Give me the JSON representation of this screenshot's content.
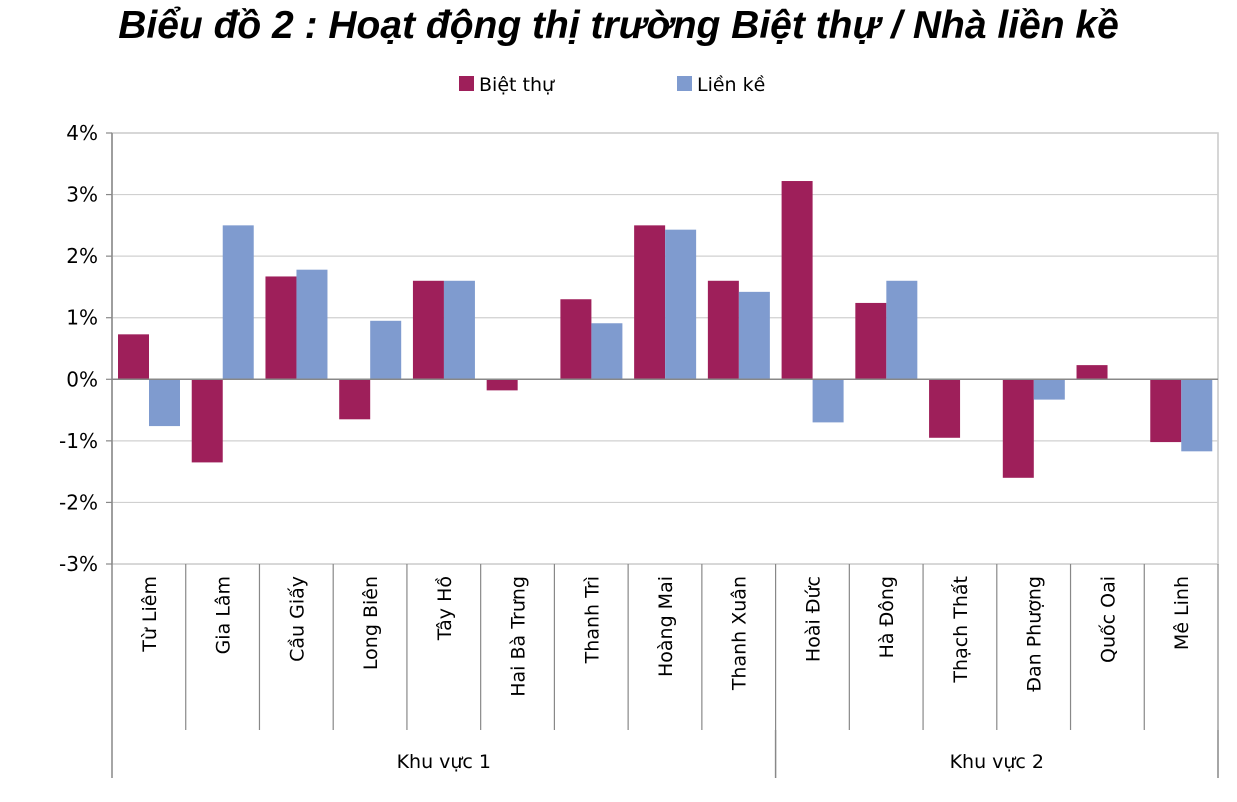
{
  "chart_data": {
    "type": "bar",
    "title": "Biểu đồ 2 : Hoạt động thị trường Biệt thự / Nhà liền kề",
    "categories": [
      "Từ Liêm",
      "Gia Lâm",
      "Cầu Giấy",
      "Long Biên",
      "Tây Hồ",
      "Hai Bà Trưng",
      "Thanh Trì",
      "Hoàng Mai",
      "Thanh Xuân",
      "Hoài Đức",
      "Hà Đông",
      "Thạch Thất",
      "Đan Phượng",
      "Quốc Oai",
      "Mê Linh"
    ],
    "groups": [
      {
        "label": "Khu vực 1",
        "categories": [
          "Từ Liêm",
          "Gia Lâm",
          "Cầu Giấy",
          "Long Biên",
          "Tây Hồ",
          "Hai Bà Trưng",
          "Thanh Trì",
          "Hoàng Mai",
          "Thanh Xuân"
        ]
      },
      {
        "label": "Khu vực 2",
        "categories": [
          "Hoài Đức",
          "Hà Đông",
          "Thạch Thất",
          "Đan Phượng",
          "Quốc Oai",
          "Mê Linh"
        ]
      }
    ],
    "series": [
      {
        "name": "Biệt thự",
        "color": "#9E1F5A",
        "values": [
          0.73,
          -1.35,
          1.67,
          -0.65,
          1.6,
          -0.18,
          1.3,
          2.5,
          1.6,
          3.22,
          1.24,
          -0.95,
          -1.6,
          0.23,
          -1.02
        ]
      },
      {
        "name": "Liền kề",
        "color": "#7F9BCF",
        "values": [
          -0.76,
          2.5,
          1.78,
          0.95,
          1.6,
          0.0,
          0.91,
          2.43,
          1.42,
          -0.7,
          1.6,
          0.0,
          -0.33,
          0.0,
          -1.17
        ]
      }
    ],
    "ylim": [
      -3,
      4
    ],
    "yticks": [
      4,
      3,
      2,
      1,
      0,
      -1,
      -2,
      -3
    ],
    "ytick_labels": [
      "4%",
      "3%",
      "2%",
      "1%",
      "0%",
      "-1%",
      "-2%",
      "-3%"
    ],
    "grid": true,
    "legend_position": "top-center"
  }
}
